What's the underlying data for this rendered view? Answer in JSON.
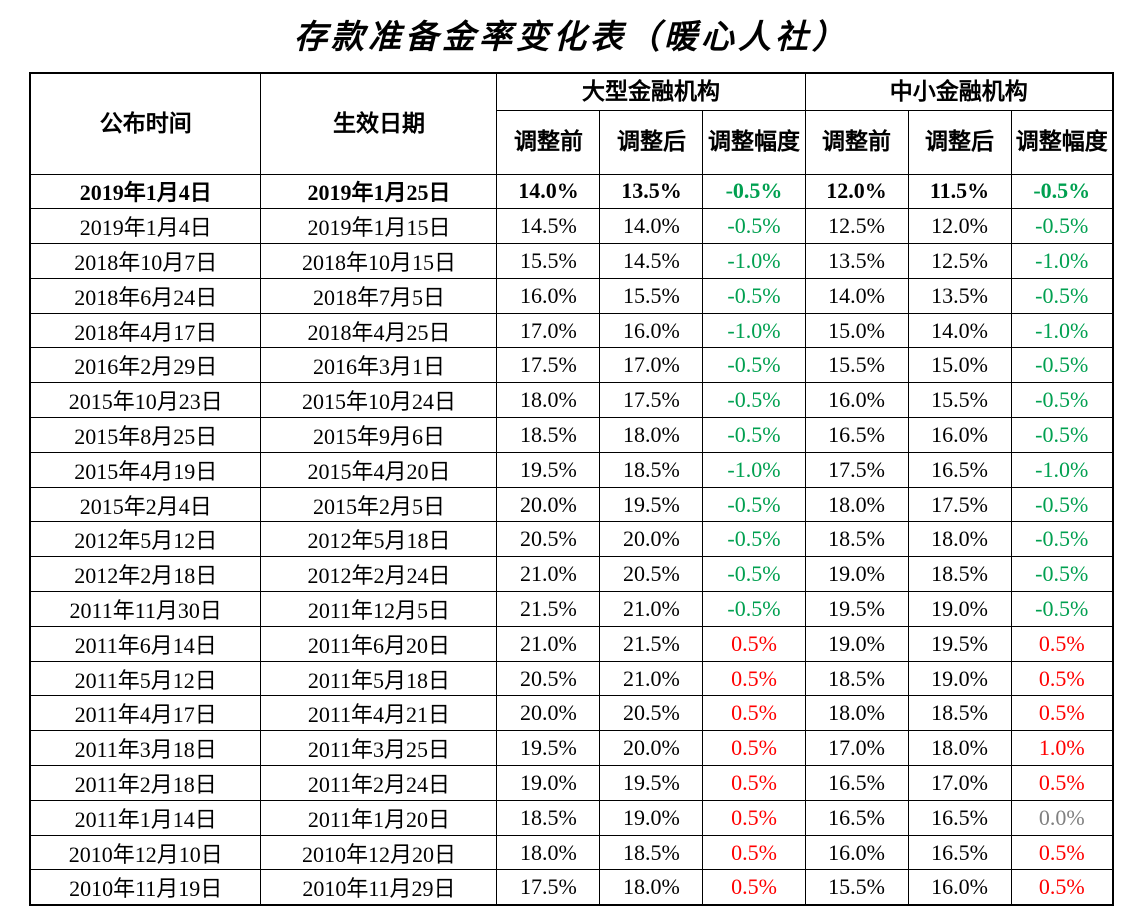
{
  "title": "存款准备金率变化表（暖心人社）",
  "colors": {
    "decrease": "#00a050",
    "increase": "#ff0000",
    "zero": "#808080",
    "text": "#000000",
    "border": "#000000"
  },
  "table": {
    "header": {
      "announce": "公布时间",
      "effective": "生效日期",
      "large_group": "大型金融机构",
      "small_group": "中小金融机构",
      "sub": [
        "调整前",
        "调整后",
        "调整幅度"
      ]
    },
    "rows": [
      {
        "announce": "2019年1月4日",
        "effective": "2019年1月25日",
        "large": [
          "14.0%",
          "13.5%",
          "-0.5%"
        ],
        "small": [
          "12.0%",
          "11.5%",
          "-0.5%"
        ],
        "bold": true
      },
      {
        "announce": "2019年1月4日",
        "effective": "2019年1月15日",
        "large": [
          "14.5%",
          "14.0%",
          "-0.5%"
        ],
        "small": [
          "12.5%",
          "12.0%",
          "-0.5%"
        ],
        "bold": false
      },
      {
        "announce": "2018年10月7日",
        "effective": "2018年10月15日",
        "large": [
          "15.5%",
          "14.5%",
          "-1.0%"
        ],
        "small": [
          "13.5%",
          "12.5%",
          "-1.0%"
        ],
        "bold": false
      },
      {
        "announce": "2018年6月24日",
        "effective": "2018年7月5日",
        "large": [
          "16.0%",
          "15.5%",
          "-0.5%"
        ],
        "small": [
          "14.0%",
          "13.5%",
          "-0.5%"
        ],
        "bold": false
      },
      {
        "announce": "2018年4月17日",
        "effective": "2018年4月25日",
        "large": [
          "17.0%",
          "16.0%",
          "-1.0%"
        ],
        "small": [
          "15.0%",
          "14.0%",
          "-1.0%"
        ],
        "bold": false
      },
      {
        "announce": "2016年2月29日",
        "effective": "2016年3月1日",
        "large": [
          "17.5%",
          "17.0%",
          "-0.5%"
        ],
        "small": [
          "15.5%",
          "15.0%",
          "-0.5%"
        ],
        "bold": false
      },
      {
        "announce": "2015年10月23日",
        "effective": "2015年10月24日",
        "large": [
          "18.0%",
          "17.5%",
          "-0.5%"
        ],
        "small": [
          "16.0%",
          "15.5%",
          "-0.5%"
        ],
        "bold": false
      },
      {
        "announce": "2015年8月25日",
        "effective": "2015年9月6日",
        "large": [
          "18.5%",
          "18.0%",
          "-0.5%"
        ],
        "small": [
          "16.5%",
          "16.0%",
          "-0.5%"
        ],
        "bold": false
      },
      {
        "announce": "2015年4月19日",
        "effective": "2015年4月20日",
        "large": [
          "19.5%",
          "18.5%",
          "-1.0%"
        ],
        "small": [
          "17.5%",
          "16.5%",
          "-1.0%"
        ],
        "bold": false
      },
      {
        "announce": "2015年2月4日",
        "effective": "2015年2月5日",
        "large": [
          "20.0%",
          "19.5%",
          "-0.5%"
        ],
        "small": [
          "18.0%",
          "17.5%",
          "-0.5%"
        ],
        "bold": false
      },
      {
        "announce": "2012年5月12日",
        "effective": "2012年5月18日",
        "large": [
          "20.5%",
          "20.0%",
          "-0.5%"
        ],
        "small": [
          "18.5%",
          "18.0%",
          "-0.5%"
        ],
        "bold": false
      },
      {
        "announce": "2012年2月18日",
        "effective": "2012年2月24日",
        "large": [
          "21.0%",
          "20.5%",
          "-0.5%"
        ],
        "small": [
          "19.0%",
          "18.5%",
          "-0.5%"
        ],
        "bold": false
      },
      {
        "announce": "2011年11月30日",
        "effective": "2011年12月5日",
        "large": [
          "21.5%",
          "21.0%",
          "-0.5%"
        ],
        "small": [
          "19.5%",
          "19.0%",
          "-0.5%"
        ],
        "bold": false
      },
      {
        "announce": "2011年6月14日",
        "effective": "2011年6月20日",
        "large": [
          "21.0%",
          "21.5%",
          "0.5%"
        ],
        "small": [
          "19.0%",
          "19.5%",
          "0.5%"
        ],
        "bold": false
      },
      {
        "announce": "2011年5月12日",
        "effective": "2011年5月18日",
        "large": [
          "20.5%",
          "21.0%",
          "0.5%"
        ],
        "small": [
          "18.5%",
          "19.0%",
          "0.5%"
        ],
        "bold": false
      },
      {
        "announce": "2011年4月17日",
        "effective": "2011年4月21日",
        "large": [
          "20.0%",
          "20.5%",
          "0.5%"
        ],
        "small": [
          "18.0%",
          "18.5%",
          "0.5%"
        ],
        "bold": false
      },
      {
        "announce": "2011年3月18日",
        "effective": "2011年3月25日",
        "large": [
          "19.5%",
          "20.0%",
          "0.5%"
        ],
        "small": [
          "17.0%",
          "18.0%",
          "1.0%"
        ],
        "bold": false
      },
      {
        "announce": "2011年2月18日",
        "effective": "2011年2月24日",
        "large": [
          "19.0%",
          "19.5%",
          "0.5%"
        ],
        "small": [
          "16.5%",
          "17.0%",
          "0.5%"
        ],
        "bold": false
      },
      {
        "announce": "2011年1月14日",
        "effective": "2011年1月20日",
        "large": [
          "18.5%",
          "19.0%",
          "0.5%"
        ],
        "small": [
          "16.5%",
          "16.5%",
          "0.0%"
        ],
        "bold": false
      },
      {
        "announce": "2010年12月10日",
        "effective": "2010年12月20日",
        "large": [
          "18.0%",
          "18.5%",
          "0.5%"
        ],
        "small": [
          "16.0%",
          "16.5%",
          "0.5%"
        ],
        "bold": false
      },
      {
        "announce": "2010年11月19日",
        "effective": "2010年11月29日",
        "large": [
          "17.5%",
          "18.0%",
          "0.5%"
        ],
        "small": [
          "15.5%",
          "16.0%",
          "0.5%"
        ],
        "bold": false
      }
    ]
  }
}
